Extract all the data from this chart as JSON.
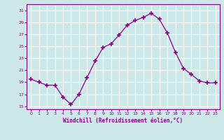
{
  "x": [
    0,
    1,
    2,
    3,
    4,
    5,
    6,
    7,
    8,
    9,
    10,
    11,
    12,
    13,
    14,
    15,
    16,
    17,
    18,
    19,
    20,
    21,
    22,
    23
  ],
  "y": [
    19.5,
    19.0,
    18.5,
    18.5,
    16.5,
    15.3,
    17.0,
    19.8,
    22.5,
    24.8,
    25.4,
    26.9,
    28.5,
    29.3,
    29.8,
    30.5,
    29.5,
    27.2,
    24.0,
    21.3,
    20.3,
    19.2,
    18.9,
    18.9
  ],
  "xlabel": "Windchill (Refroidissement éolien,°C)",
  "xlim": [
    -0.5,
    23.5
  ],
  "ylim": [
    14.5,
    32
  ],
  "yticks": [
    15,
    17,
    19,
    21,
    23,
    25,
    27,
    29,
    31
  ],
  "xticks": [
    0,
    1,
    2,
    3,
    4,
    5,
    6,
    7,
    8,
    9,
    10,
    11,
    12,
    13,
    14,
    15,
    16,
    17,
    18,
    19,
    20,
    21,
    22,
    23
  ],
  "line_color": "#8B008B",
  "marker_color": "#8B008B",
  "bg_color": "#cce8e8",
  "grid_color": "#b0d0d0",
  "axis_color": "#8B008B",
  "tick_label_color": "#8B008B",
  "xlabel_color": "#8B008B"
}
